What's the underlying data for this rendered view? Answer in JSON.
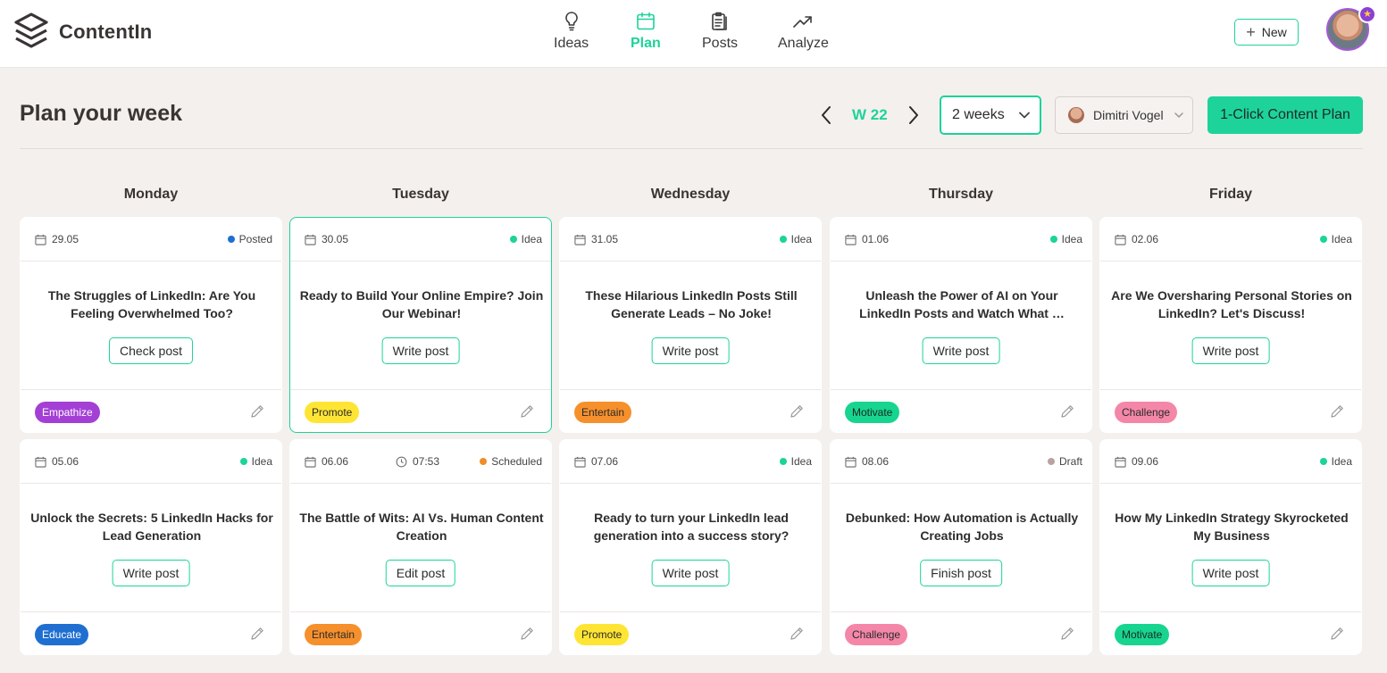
{
  "header": {
    "logo_text": "ContentIn",
    "nav": [
      {
        "label": "Ideas",
        "active": false,
        "icon": "lightbulb-icon"
      },
      {
        "label": "Plan",
        "active": true,
        "icon": "calendar-icon"
      },
      {
        "label": "Posts",
        "active": false,
        "icon": "clipboard-icon"
      },
      {
        "label": "Analyze",
        "active": false,
        "icon": "trending-up-icon"
      }
    ],
    "new_button": "New"
  },
  "toolbar": {
    "title": "Plan your week",
    "week": "W 22",
    "range_select": "2 weeks",
    "user_select": "Dimitri Vogel",
    "primary_button": "1-Click Content Plan"
  },
  "colors": {
    "accent": "#1dd39a",
    "status_posted": "#1f6fd1",
    "status_idea": "#1dd39a",
    "status_scheduled": "#f08c2a",
    "status_draft": "#b8a3a0"
  },
  "days": [
    "Monday",
    "Tuesday",
    "Wednesday",
    "Thursday",
    "Friday"
  ],
  "cards": [
    {
      "date": "29.05",
      "time": "",
      "status": "Posted",
      "title": "The Struggles of LinkedIn: Are You Feeling Overwhelmed Too?",
      "action": "Check post",
      "tag": "Empathize"
    },
    {
      "date": "30.05",
      "time": "",
      "status": "Idea",
      "title": "Ready to Build Your Online Empire? Join Our Webinar!",
      "action": "Write post",
      "tag": "Promote"
    },
    {
      "date": "31.05",
      "time": "",
      "status": "Idea",
      "title": "These Hilarious LinkedIn Posts Still Generate Leads – No Joke!",
      "action": "Write post",
      "tag": "Entertain"
    },
    {
      "date": "01.06",
      "time": "",
      "status": "Idea",
      "title": "Unleash the Power of AI on Your LinkedIn Posts and Watch What …",
      "action": "Write post",
      "tag": "Motivate"
    },
    {
      "date": "02.06",
      "time": "",
      "status": "Idea",
      "title": "Are We Oversharing Personal Stories on LinkedIn? Let's Discuss!",
      "action": "Write post",
      "tag": "Challenge"
    },
    {
      "date": "05.06",
      "time": "",
      "status": "Idea",
      "title": "Unlock the Secrets: 5 LinkedIn Hacks for Lead Generation",
      "action": "Write post",
      "tag": "Educate"
    },
    {
      "date": "06.06",
      "time": "07:53",
      "status": "Scheduled",
      "title": "The Battle of Wits: AI Vs. Human Content Creation",
      "action": "Edit post",
      "tag": "Entertain"
    },
    {
      "date": "07.06",
      "time": "",
      "status": "Idea",
      "title": "Ready to turn your LinkedIn lead generation into a success story?",
      "action": "Write post",
      "tag": "Promote"
    },
    {
      "date": "08.06",
      "time": "",
      "status": "Draft",
      "title": "Debunked: How Automation is Actually Creating Jobs",
      "action": "Finish post",
      "tag": "Challenge"
    },
    {
      "date": "09.06",
      "time": "",
      "status": "Idea",
      "title": "How My LinkedIn Strategy Skyrocketed My Business",
      "action": "Write post",
      "tag": "Motivate"
    }
  ],
  "tag_colors": {
    "Empathize": {
      "bg": "#a43fd6",
      "fg": "#ffffff"
    },
    "Promote": {
      "bg": "#ffe533",
      "fg": "#2a2a2a"
    },
    "Entertain": {
      "bg": "#f6902c",
      "fg": "#2a2a2a"
    },
    "Motivate": {
      "bg": "#17d58f",
      "fg": "#1a2a24"
    },
    "Challenge": {
      "bg": "#f487a8",
      "fg": "#2a2a2a"
    },
    "Educate": {
      "bg": "#1f6fd1",
      "fg": "#ffffff"
    }
  }
}
